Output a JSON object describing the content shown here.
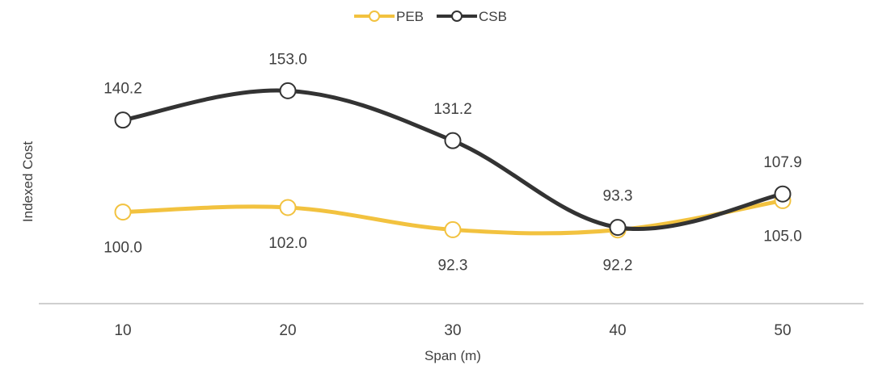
{
  "chart_data": {
    "type": "line",
    "title": "",
    "xlabel": "Span (m)",
    "ylabel": "Indexed Cost",
    "categories": [
      "10",
      "20",
      "30",
      "40",
      "50"
    ],
    "ylim": [
      60,
      175
    ],
    "grid": false,
    "smooth": true,
    "legend_position": "top",
    "series": [
      {
        "name": "PEB",
        "values": [
          100.0,
          102.0,
          92.3,
          92.2,
          105.0
        ],
        "labels": [
          "100.0",
          "102.0",
          "92.3",
          "92.2",
          "105.0"
        ],
        "label_position": "below",
        "color": "#F2C23F"
      },
      {
        "name": "CSB",
        "values": [
          140.2,
          153.0,
          131.2,
          93.3,
          107.9
        ],
        "labels": [
          "140.2",
          "153.0",
          "131.2",
          "93.3",
          "107.9"
        ],
        "label_position": "above",
        "color": "#333333"
      }
    ]
  }
}
